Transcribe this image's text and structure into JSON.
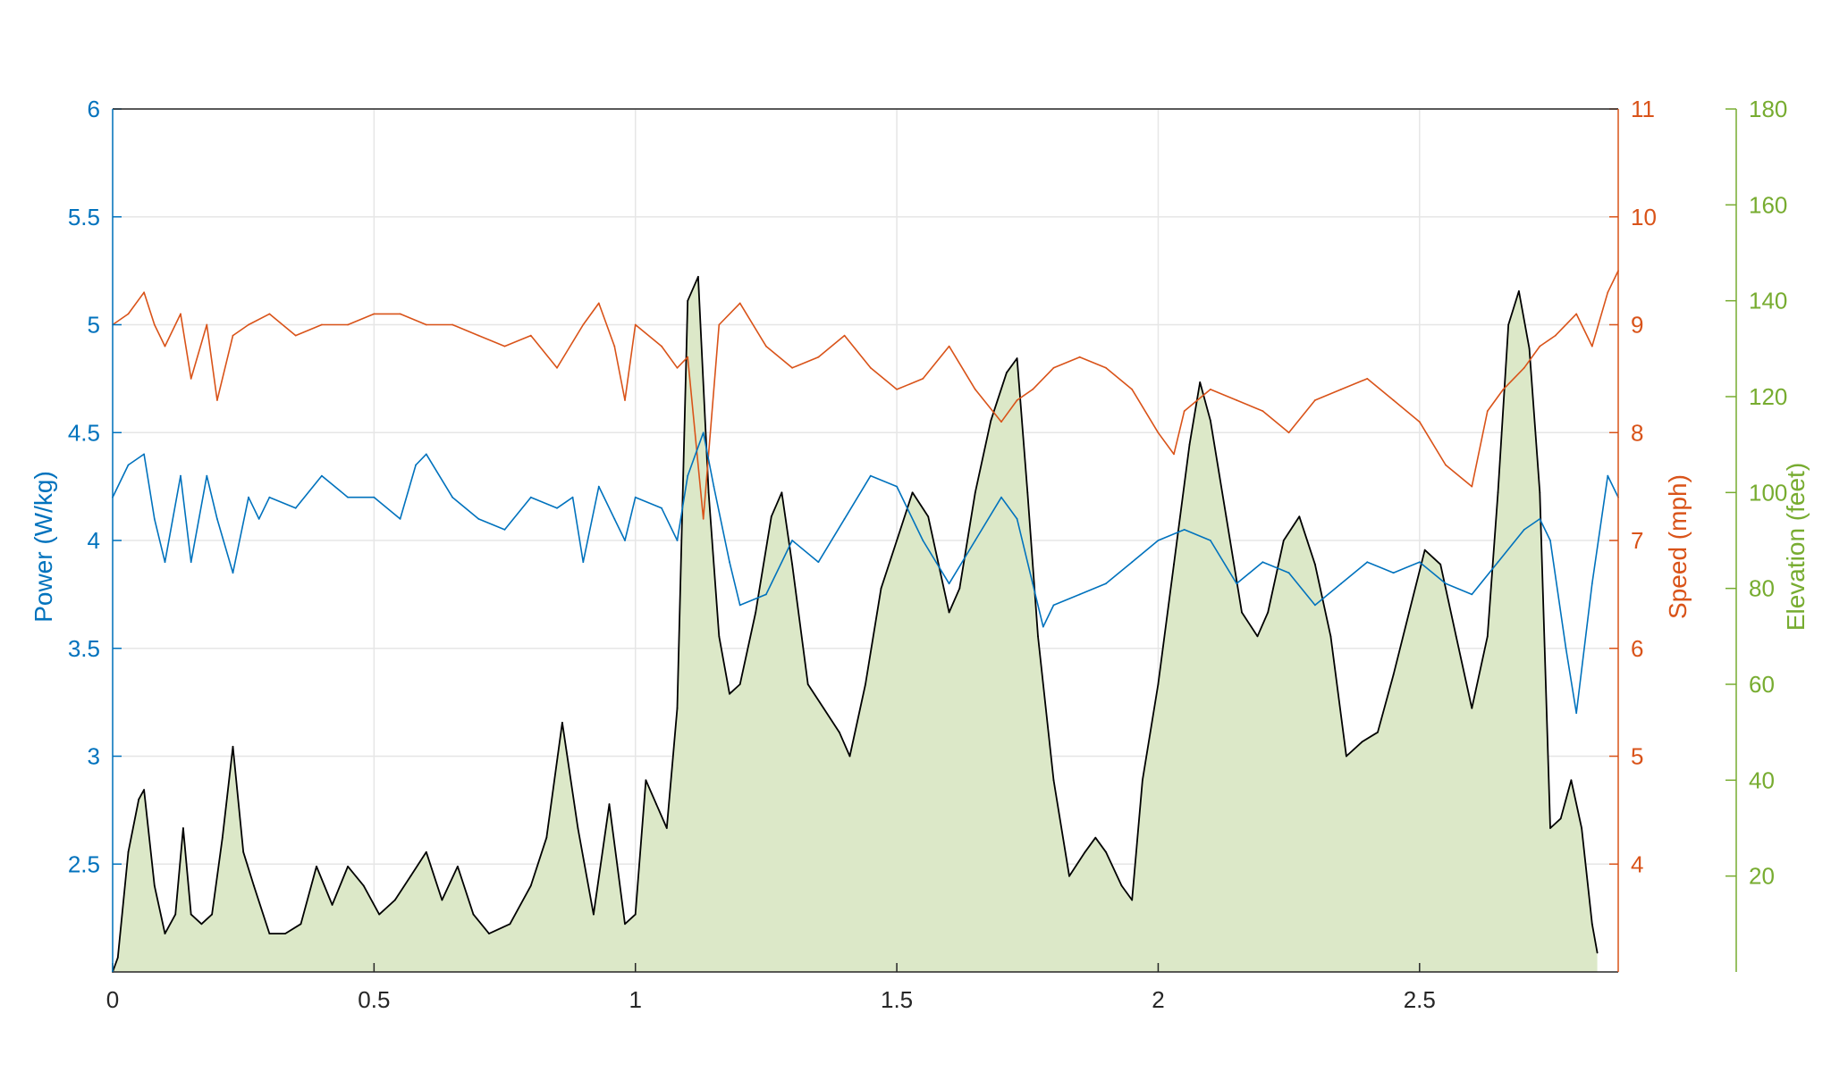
{
  "chart_data": {
    "type": "line",
    "title": "",
    "xlabel": "",
    "x_range": [
      0,
      2.88
    ],
    "x_ticks": [
      "0",
      "0.5",
      "1",
      "1.5",
      "2",
      "2.5"
    ],
    "x_tick_values": [
      0,
      0.5,
      1,
      1.5,
      2,
      2.5
    ],
    "grid": true,
    "axes": {
      "power": {
        "label": "Power (W/kg)",
        "side": "left",
        "color": "#0072BD",
        "range": [
          2,
          6
        ],
        "ticks": [
          "2.5",
          "3",
          "3.5",
          "4",
          "4.5",
          "5",
          "5.5",
          "6"
        ],
        "tick_values": [
          2.5,
          3,
          3.5,
          4,
          4.5,
          5,
          5.5,
          6
        ]
      },
      "speed": {
        "label": "Speed (mph)",
        "side": "right",
        "color": "#D95319",
        "range": [
          3,
          11
        ],
        "ticks": [
          "4",
          "5",
          "6",
          "7",
          "8",
          "9",
          "10",
          "11"
        ],
        "tick_values": [
          4,
          5,
          6,
          7,
          8,
          9,
          10,
          11
        ]
      },
      "elevation": {
        "label": "Elevation (feet)",
        "side": "right-outer",
        "color": "#77AC30",
        "range": [
          0,
          180
        ],
        "ticks": [
          "20",
          "40",
          "60",
          "80",
          "100",
          "120",
          "140",
          "160",
          "180"
        ],
        "tick_values": [
          20,
          40,
          60,
          80,
          100,
          120,
          140,
          160,
          180
        ]
      }
    },
    "series": [
      {
        "axis": "power",
        "color": "#0072BD",
        "x": [
          0,
          0.03,
          0.06,
          0.08,
          0.1,
          0.13,
          0.15,
          0.18,
          0.2,
          0.23,
          0.26,
          0.28,
          0.3,
          0.35,
          0.4,
          0.45,
          0.5,
          0.55,
          0.58,
          0.6,
          0.65,
          0.7,
          0.75,
          0.8,
          0.85,
          0.88,
          0.9,
          0.93,
          0.96,
          0.98,
          1.0,
          1.05,
          1.08,
          1.1,
          1.13,
          1.15,
          1.18,
          1.2,
          1.25,
          1.3,
          1.35,
          1.4,
          1.45,
          1.5,
          1.55,
          1.6,
          1.65,
          1.7,
          1.73,
          1.76,
          1.78,
          1.8,
          1.85,
          1.9,
          1.95,
          2.0,
          2.05,
          2.1,
          2.15,
          2.2,
          2.25,
          2.3,
          2.35,
          2.4,
          2.45,
          2.5,
          2.55,
          2.6,
          2.65,
          2.7,
          2.73,
          2.75,
          2.78,
          2.8,
          2.83,
          2.86,
          2.88
        ],
        "values": [
          4.2,
          4.35,
          4.4,
          4.1,
          3.9,
          4.3,
          3.9,
          4.3,
          4.1,
          3.85,
          4.2,
          4.1,
          4.2,
          4.15,
          4.3,
          4.2,
          4.2,
          4.1,
          4.35,
          4.4,
          4.2,
          4.1,
          4.05,
          4.2,
          4.15,
          4.2,
          3.9,
          4.25,
          4.1,
          4.0,
          4.2,
          4.15,
          4.0,
          4.3,
          4.5,
          4.25,
          3.9,
          3.7,
          3.75,
          4.0,
          3.9,
          4.1,
          4.3,
          4.25,
          4.0,
          3.8,
          4.0,
          4.2,
          4.1,
          3.8,
          3.6,
          3.7,
          3.75,
          3.8,
          3.9,
          4.0,
          4.05,
          4.0,
          3.8,
          3.9,
          3.85,
          3.7,
          3.8,
          3.9,
          3.85,
          3.9,
          3.8,
          3.75,
          3.9,
          4.05,
          4.1,
          4.0,
          3.5,
          3.2,
          3.8,
          4.3,
          4.2
        ]
      },
      {
        "axis": "speed",
        "color": "#D95319",
        "x": [
          0,
          0.03,
          0.06,
          0.08,
          0.1,
          0.13,
          0.15,
          0.18,
          0.2,
          0.23,
          0.26,
          0.3,
          0.35,
          0.4,
          0.45,
          0.5,
          0.55,
          0.6,
          0.65,
          0.7,
          0.75,
          0.8,
          0.85,
          0.9,
          0.93,
          0.96,
          0.98,
          1.0,
          1.05,
          1.08,
          1.1,
          1.13,
          1.16,
          1.2,
          1.25,
          1.3,
          1.35,
          1.4,
          1.45,
          1.5,
          1.55,
          1.6,
          1.65,
          1.7,
          1.73,
          1.76,
          1.8,
          1.85,
          1.9,
          1.95,
          2.0,
          2.03,
          2.05,
          2.1,
          2.15,
          2.2,
          2.25,
          2.3,
          2.35,
          2.4,
          2.45,
          2.5,
          2.55,
          2.6,
          2.63,
          2.66,
          2.7,
          2.73,
          2.76,
          2.8,
          2.83,
          2.86,
          2.88
        ],
        "values": [
          9.0,
          9.1,
          9.3,
          9.0,
          8.8,
          9.1,
          8.5,
          9.0,
          8.3,
          8.9,
          9.0,
          9.1,
          8.9,
          9.0,
          9.0,
          9.1,
          9.1,
          9.0,
          9.0,
          8.9,
          8.8,
          8.9,
          8.6,
          9.0,
          9.2,
          8.8,
          8.3,
          9.0,
          8.8,
          8.6,
          8.7,
          7.2,
          9.0,
          9.2,
          8.8,
          8.6,
          8.7,
          8.9,
          8.6,
          8.4,
          8.5,
          8.8,
          8.4,
          8.1,
          8.3,
          8.4,
          8.6,
          8.7,
          8.6,
          8.4,
          8.0,
          7.8,
          8.2,
          8.4,
          8.3,
          8.2,
          8.0,
          8.3,
          8.4,
          8.5,
          8.3,
          8.1,
          7.7,
          7.5,
          8.2,
          8.4,
          8.6,
          8.8,
          8.9,
          9.1,
          8.8,
          9.3,
          9.5
        ]
      },
      {
        "axis": "elevation",
        "color": "#000000",
        "fill": "#DCE8C8",
        "x": [
          0,
          0.01,
          0.03,
          0.05,
          0.06,
          0.08,
          0.1,
          0.12,
          0.135,
          0.15,
          0.17,
          0.19,
          0.21,
          0.23,
          0.25,
          0.27,
          0.3,
          0.33,
          0.36,
          0.39,
          0.42,
          0.45,
          0.48,
          0.51,
          0.54,
          0.57,
          0.6,
          0.63,
          0.66,
          0.69,
          0.72,
          0.76,
          0.8,
          0.83,
          0.86,
          0.89,
          0.92,
          0.95,
          0.98,
          1.0,
          1.02,
          1.04,
          1.06,
          1.08,
          1.1,
          1.12,
          1.14,
          1.16,
          1.18,
          1.2,
          1.23,
          1.26,
          1.28,
          1.3,
          1.33,
          1.36,
          1.39,
          1.41,
          1.44,
          1.47,
          1.5,
          1.53,
          1.56,
          1.59,
          1.6,
          1.62,
          1.65,
          1.68,
          1.71,
          1.73,
          1.75,
          1.77,
          1.8,
          1.83,
          1.86,
          1.88,
          1.9,
          1.93,
          1.95,
          1.97,
          2.0,
          2.03,
          2.06,
          2.08,
          2.1,
          2.13,
          2.16,
          2.19,
          2.21,
          2.24,
          2.27,
          2.3,
          2.33,
          2.36,
          2.39,
          2.42,
          2.45,
          2.48,
          2.51,
          2.54,
          2.57,
          2.6,
          2.63,
          2.65,
          2.67,
          2.69,
          2.71,
          2.73,
          2.75,
          2.77,
          2.79,
          2.81,
          2.83,
          2.84
        ],
        "values": [
          0,
          3,
          25,
          36,
          38,
          18,
          8,
          12,
          30,
          12,
          10,
          12,
          28,
          47,
          25,
          18,
          8,
          8,
          10,
          22,
          14,
          22,
          18,
          12,
          15,
          20,
          25,
          15,
          22,
          12,
          8,
          10,
          18,
          28,
          52,
          30,
          12,
          35,
          10,
          12,
          40,
          35,
          30,
          55,
          140,
          145,
          100,
          70,
          58,
          60,
          75,
          95,
          100,
          85,
          60,
          55,
          50,
          45,
          60,
          80,
          90,
          100,
          95,
          80,
          75,
          80,
          100,
          115,
          125,
          128,
          100,
          70,
          40,
          20,
          25,
          28,
          25,
          18,
          15,
          40,
          60,
          85,
          110,
          123,
          115,
          95,
          75,
          70,
          75,
          90,
          95,
          85,
          70,
          45,
          48,
          50,
          62,
          75,
          88,
          85,
          70,
          55,
          70,
          100,
          135,
          142,
          130,
          100,
          30,
          32,
          40,
          30,
          10,
          4
        ]
      }
    ]
  }
}
